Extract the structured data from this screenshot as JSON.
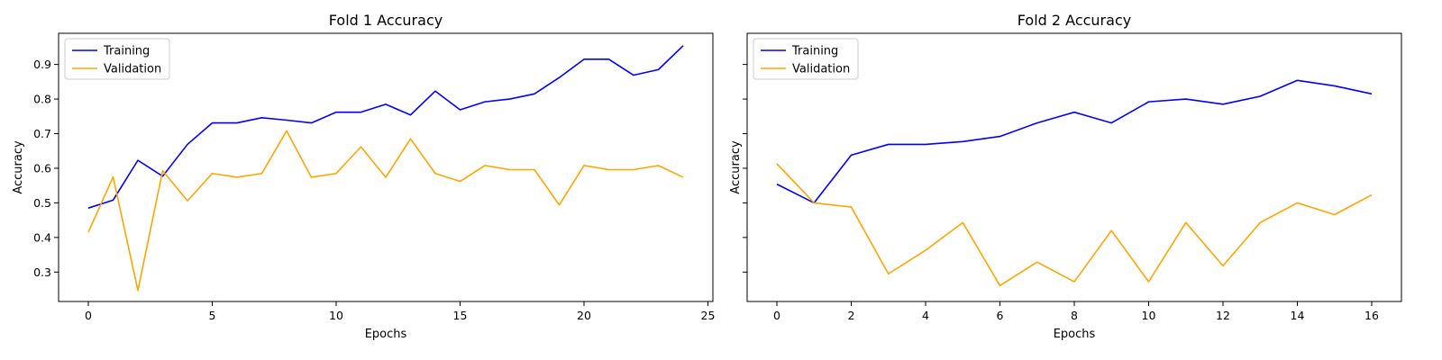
{
  "chart_data": [
    {
      "type": "line",
      "title": "Fold 1 Accuracy",
      "xlabel": "Epochs",
      "ylabel": "Accuracy",
      "x": [
        0,
        1,
        2,
        3,
        4,
        5,
        6,
        7,
        8,
        9,
        10,
        11,
        12,
        13,
        14,
        15,
        16,
        17,
        18,
        19,
        20,
        21,
        22,
        23,
        24
      ],
      "xlim": [
        -1.2,
        25.2
      ],
      "ylim": [
        0.215,
        0.99
      ],
      "xticks": [
        0,
        5,
        10,
        15,
        20,
        25
      ],
      "yticks": [
        0.3,
        0.4,
        0.5,
        0.6,
        0.7,
        0.8,
        0.9
      ],
      "grid": false,
      "legend": "top-left",
      "series": [
        {
          "name": "Training",
          "color": "#0000ff",
          "values": [
            0.485,
            0.508,
            0.623,
            0.577,
            0.669,
            0.731,
            0.731,
            0.746,
            0.739,
            0.731,
            0.762,
            0.762,
            0.785,
            0.754,
            0.823,
            0.769,
            0.792,
            0.8,
            0.815,
            0.862,
            0.915,
            0.915,
            0.869,
            0.885,
            0.954
          ]
        },
        {
          "name": "Validation",
          "color": "#ffa500",
          "values": [
            0.415,
            0.575,
            0.247,
            0.593,
            0.506,
            0.585,
            0.574,
            0.585,
            0.708,
            0.574,
            0.585,
            0.662,
            0.574,
            0.685,
            0.585,
            0.562,
            0.608,
            0.596,
            0.596,
            0.494,
            0.608,
            0.596,
            0.596,
            0.608,
            0.574
          ]
        }
      ]
    },
    {
      "type": "line",
      "title": "Fold 2 Accuracy",
      "xlabel": "Epochs",
      "ylabel": "Accuracy",
      "x": [
        0,
        1,
        2,
        3,
        4,
        5,
        6,
        7,
        8,
        9,
        10,
        11,
        12,
        13,
        14,
        15,
        16
      ],
      "xlim": [
        -0.8,
        16.8
      ],
      "ylim": [
        0.215,
        0.99
      ],
      "xticks": [
        0,
        2,
        4,
        6,
        8,
        10,
        12,
        14,
        16
      ],
      "yticks": [
        0.3,
        0.4,
        0.5,
        0.6,
        0.7,
        0.8,
        0.9
      ],
      "grid": false,
      "legend": "top-left",
      "series": [
        {
          "name": "Training",
          "color": "#0000ff",
          "values": [
            0.554,
            0.5,
            0.638,
            0.669,
            0.669,
            0.677,
            0.692,
            0.731,
            0.762,
            0.731,
            0.792,
            0.8,
            0.785,
            0.808,
            0.854,
            0.838,
            0.815
          ]
        },
        {
          "name": "Validation",
          "color": "#ffa500",
          "values": [
            0.613,
            0.5,
            0.488,
            0.295,
            0.363,
            0.443,
            0.261,
            0.329,
            0.272,
            0.42,
            0.272,
            0.443,
            0.318,
            0.443,
            0.5,
            0.466,
            0.523
          ]
        }
      ]
    }
  ]
}
